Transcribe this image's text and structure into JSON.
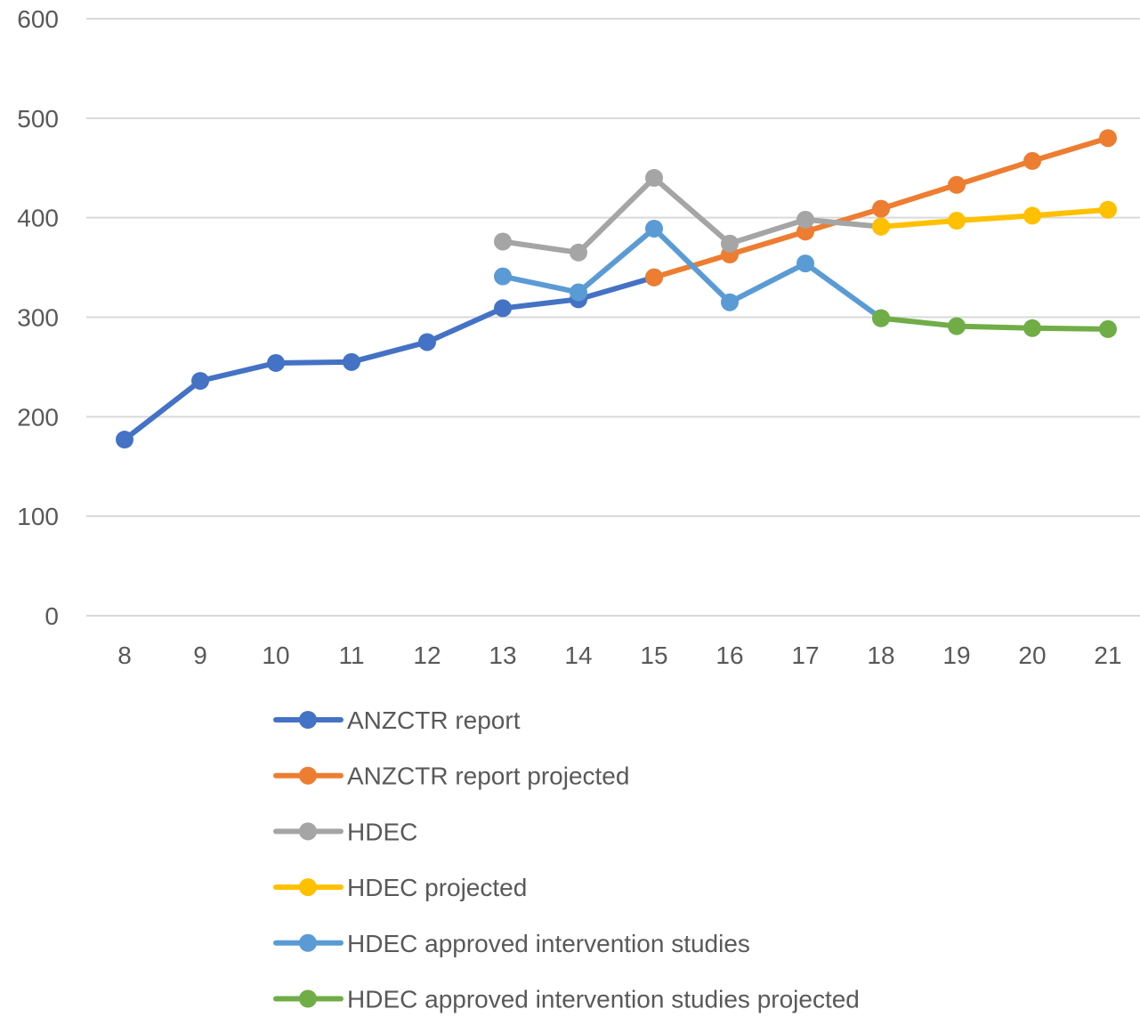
{
  "chart_data": {
    "type": "line",
    "title": "",
    "xlabel": "",
    "ylabel": "",
    "categories": [
      "8",
      "9",
      "10",
      "11",
      "12",
      "13",
      "14",
      "15",
      "16",
      "17",
      "18",
      "19",
      "20",
      "21"
    ],
    "y_ticks": [
      "0",
      "100",
      "200",
      "300",
      "400",
      "500",
      "600"
    ],
    "ylim": [
      0,
      600
    ],
    "grid": true,
    "legend_position": "bottom",
    "series": [
      {
        "name": "ANZCTR report",
        "color": "#4472C4",
        "values": [
          177,
          236,
          254,
          255,
          275,
          309,
          318,
          340,
          null,
          null,
          null,
          null,
          null,
          null
        ]
      },
      {
        "name": "ANZCTR report projected",
        "color": "#ED7D31",
        "values": [
          null,
          null,
          null,
          null,
          null,
          null,
          null,
          340,
          363,
          386,
          409,
          433,
          457,
          480
        ]
      },
      {
        "name": "HDEC",
        "color": "#A5A5A5",
        "values": [
          null,
          null,
          null,
          null,
          null,
          376,
          365,
          440,
          374,
          398,
          391,
          null,
          null,
          null
        ]
      },
      {
        "name": "HDEC projected",
        "color": "#FFC000",
        "values": [
          null,
          null,
          null,
          null,
          null,
          null,
          null,
          null,
          null,
          null,
          391,
          397,
          402,
          408
        ]
      },
      {
        "name": "HDEC approved intervention studies",
        "color": "#5B9BD5",
        "values": [
          null,
          null,
          null,
          null,
          null,
          341,
          325,
          389,
          315,
          354,
          299,
          null,
          null,
          null
        ]
      },
      {
        "name": "HDEC approved intervention studies projected",
        "color": "#70AD47",
        "values": [
          null,
          null,
          null,
          null,
          null,
          null,
          null,
          null,
          null,
          null,
          299,
          291,
          289,
          288
        ]
      }
    ]
  }
}
